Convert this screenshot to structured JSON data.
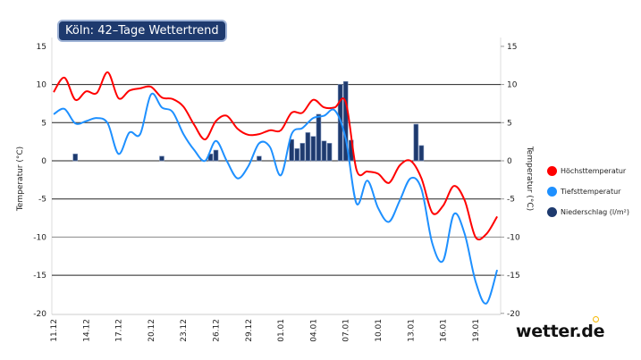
{
  "title": "Köln: 42–Tage Wettertrend",
  "logo": "wetter.de",
  "chart_data": {
    "type": "line",
    "title": "Köln: 42–Tage Wettertrend",
    "ylabel_left": "Temperatur (°C)",
    "ylabel_right": "Temperatur (°C)",
    "ylim": [
      -20,
      15
    ],
    "yticks": [
      15,
      10,
      5,
      0,
      -5,
      -10,
      -15,
      -20
    ],
    "grid": true,
    "legend_position": "right",
    "x": [
      "11.12",
      "12.12",
      "13.12",
      "14.12",
      "15.12",
      "16.12",
      "17.12",
      "18.12",
      "19.12",
      "20.12",
      "21.12",
      "22.12",
      "23.12",
      "24.12",
      "25.12",
      "26.12",
      "27.12",
      "28.12",
      "29.12",
      "30.12",
      "31.12",
      "01.01",
      "02.01",
      "03.01",
      "04.01",
      "05.01",
      "06.01",
      "07.01",
      "08.01",
      "09.01",
      "10.01",
      "11.01",
      "12.01",
      "13.01",
      "14.01",
      "15.01",
      "16.01",
      "17.01",
      "18.01",
      "19.01",
      "20.01",
      "21.01"
    ],
    "xticks": [
      "11.12",
      "14.12",
      "17.12",
      "20.12",
      "23.12",
      "26.12",
      "29.12",
      "01.01",
      "04.01",
      "07.01",
      "10.01",
      "13.01",
      "16.01",
      "19.01"
    ],
    "series": [
      {
        "name": "Höchsttemperatur",
        "color": "#ff0000",
        "values": [
          9.0,
          10.9,
          8.0,
          9.1,
          8.9,
          11.6,
          8.2,
          9.2,
          9.5,
          9.7,
          8.3,
          8.1,
          7.1,
          4.7,
          2.8,
          5.2,
          5.9,
          4.2,
          3.4,
          3.5,
          4.0,
          4.0,
          6.3,
          6.3,
          8.0,
          7.0,
          7.0,
          7.7,
          -1.2,
          -1.4,
          -1.7,
          -2.9,
          -0.6,
          0.0,
          -2.3,
          -6.8,
          -5.9,
          -3.3,
          -5.2,
          -10.0,
          -9.6,
          -7.3
        ]
      },
      {
        "name": "Tiefsttemperatur",
        "color": "#1e90ff",
        "values": [
          6.1,
          6.8,
          4.9,
          5.2,
          5.6,
          4.9,
          0.9,
          3.7,
          3.5,
          8.7,
          7.0,
          6.4,
          3.5,
          1.4,
          0.0,
          2.6,
          0.0,
          -2.3,
          -0.7,
          2.3,
          1.8,
          -1.9,
          3.5,
          4.3,
          5.6,
          5.9,
          6.6,
          2.9,
          -5.6,
          -2.6,
          -6.2,
          -8.0,
          -5.2,
          -2.3,
          -3.7,
          -10.8,
          -13.1,
          -7.0,
          -9.6,
          -15.8,
          -18.7,
          -14.3
        ]
      }
    ],
    "precipitation": {
      "name": "Niederschlag (l/m²)",
      "color": "#1e3a6e",
      "points": [
        {
          "x": "13.12 00:00",
          "value": 0.9
        },
        {
          "x": "21.12 00:00",
          "value": 0.6
        },
        {
          "x": "25.12 12:00",
          "value": 0.9
        },
        {
          "x": "26.12 00:00",
          "value": 1.4
        },
        {
          "x": "30.12 00:00",
          "value": 0.6
        },
        {
          "x": "02.01 00:00",
          "value": 2.8
        },
        {
          "x": "02.01 12:00",
          "value": 1.6
        },
        {
          "x": "03.01 00:00",
          "value": 2.3
        },
        {
          "x": "03.01 12:00",
          "value": 3.7
        },
        {
          "x": "04.01 00:00",
          "value": 3.2
        },
        {
          "x": "04.01 12:00",
          "value": 6.1
        },
        {
          "x": "05.01 00:00",
          "value": 2.6
        },
        {
          "x": "05.01 12:00",
          "value": 2.3
        },
        {
          "x": "06.01 12:00",
          "value": 10.0
        },
        {
          "x": "07.01 00:00",
          "value": 10.4
        },
        {
          "x": "07.01 12:00",
          "value": 2.7
        },
        {
          "x": "13.01 12:00",
          "value": 4.8
        },
        {
          "x": "14.01 00:00",
          "value": 2.0
        }
      ]
    }
  }
}
